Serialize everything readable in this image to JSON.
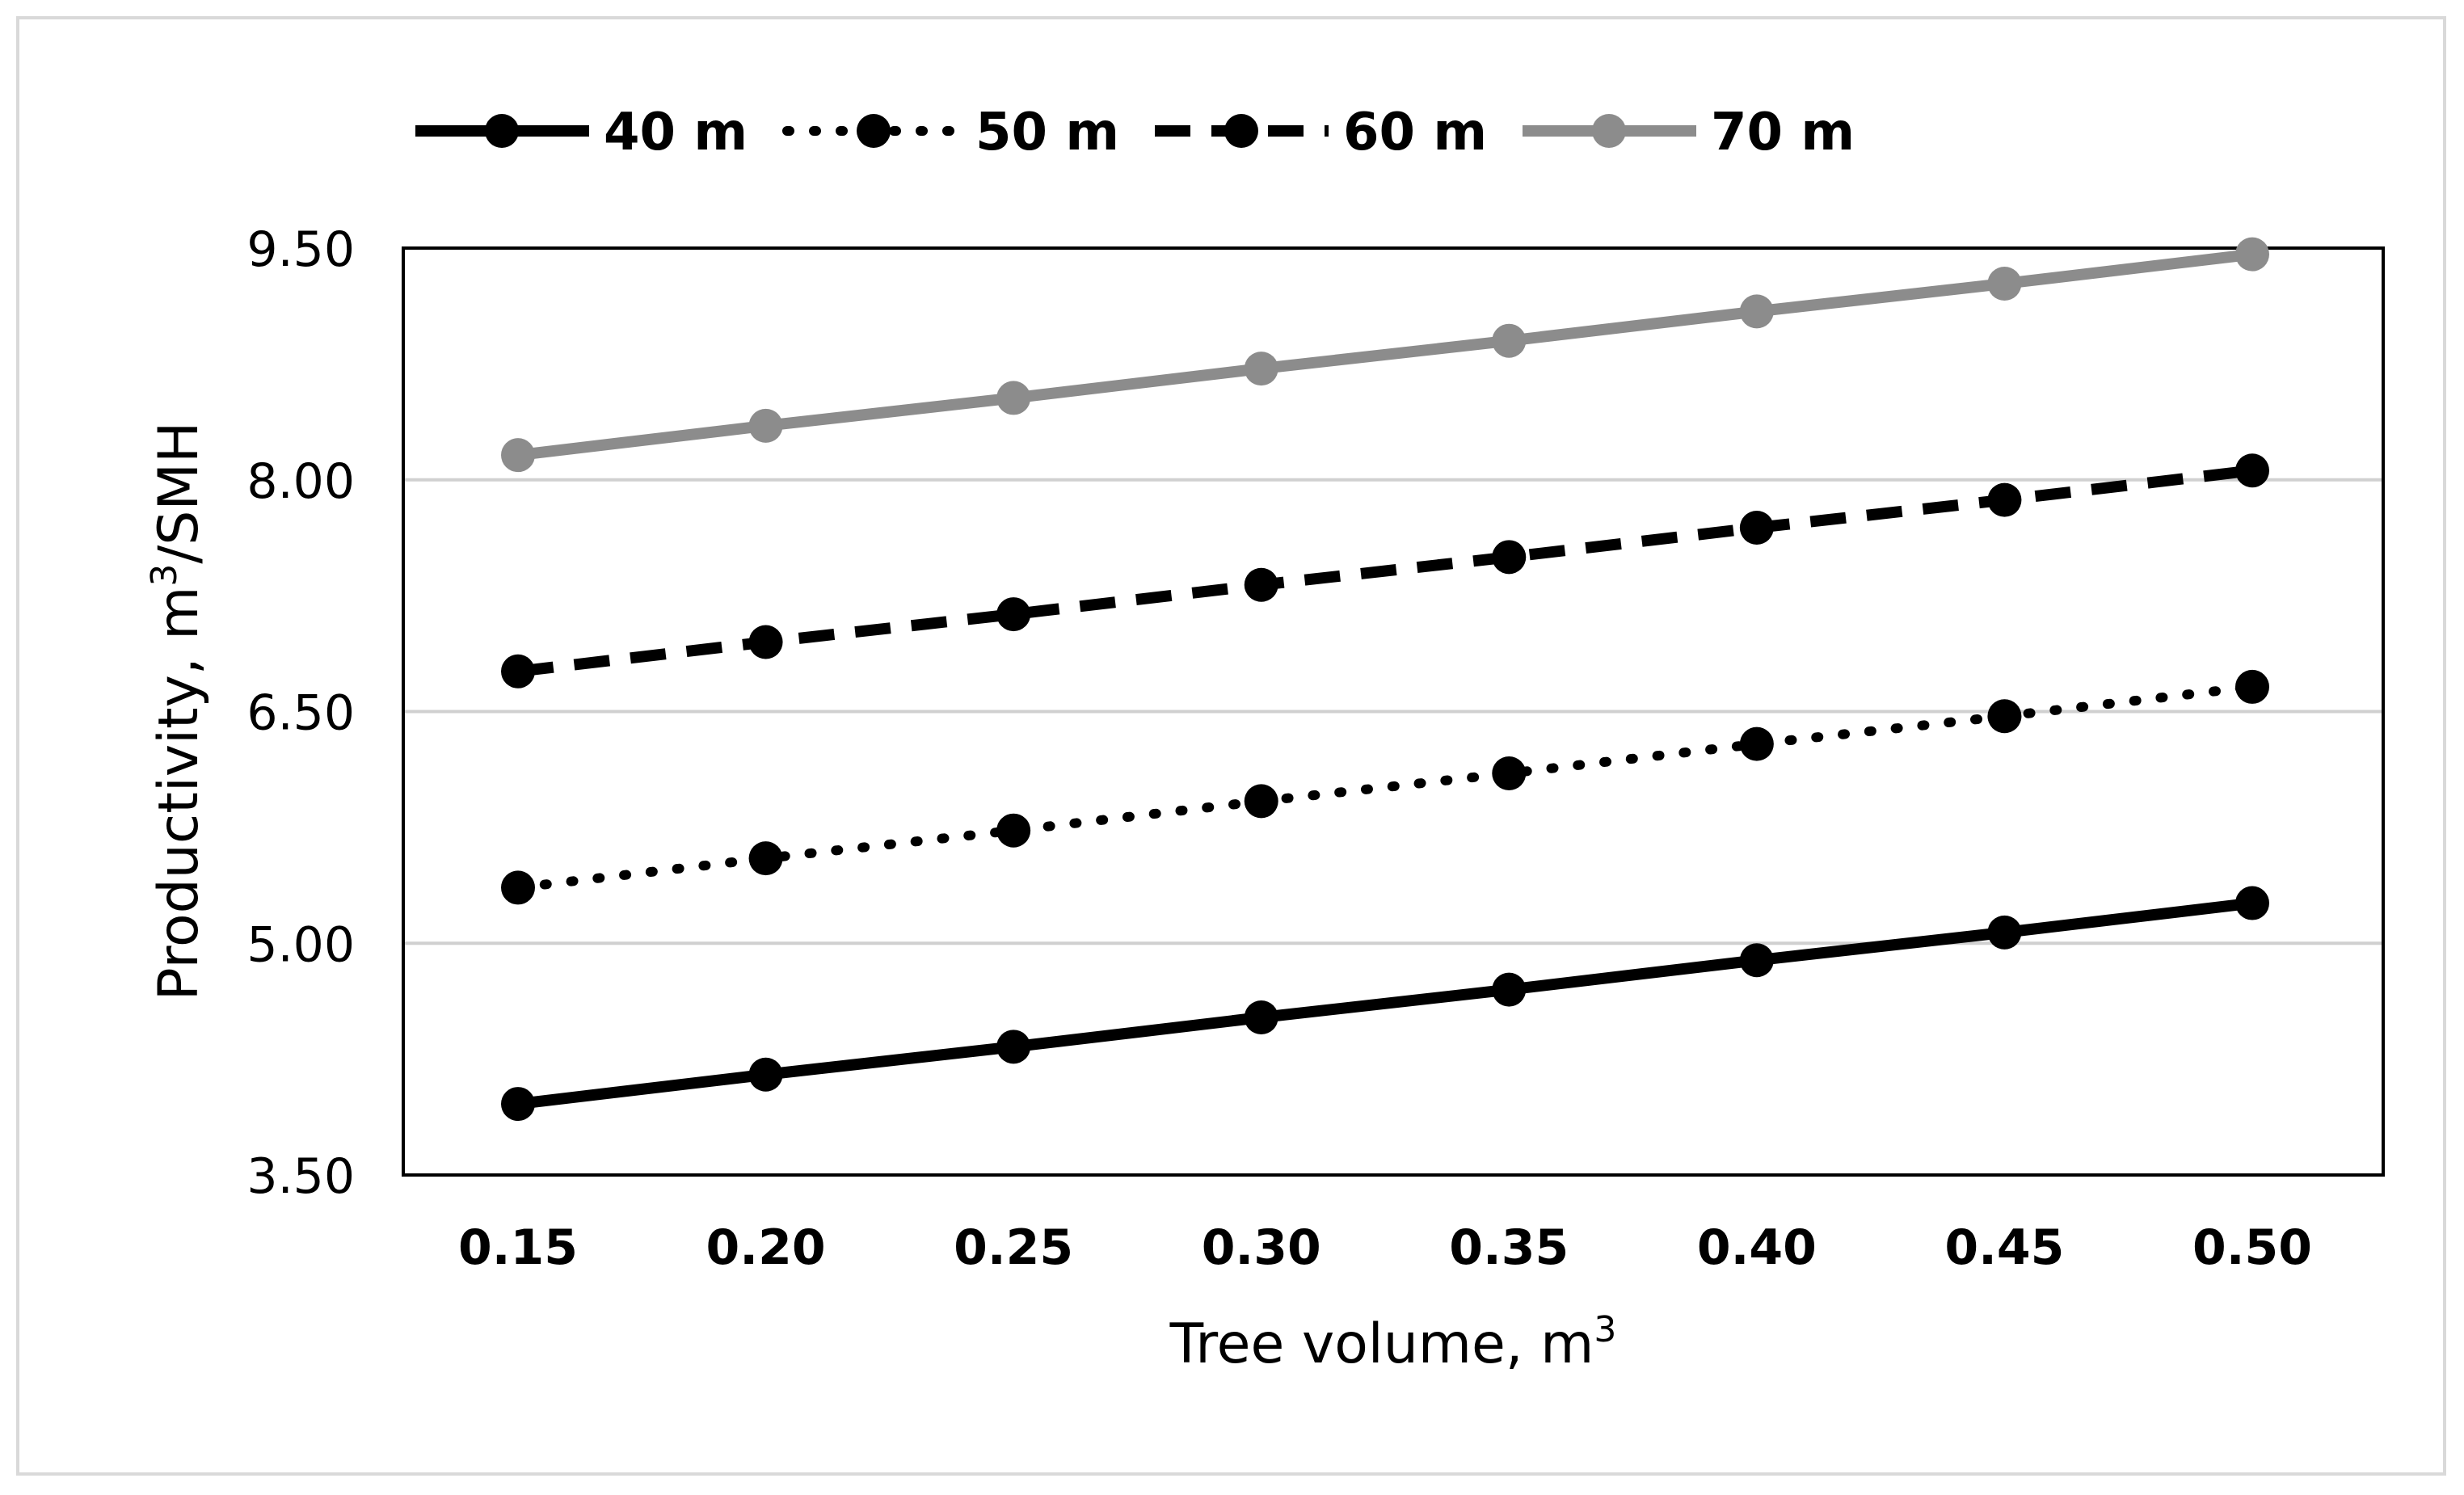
{
  "chart_data": {
    "type": "line",
    "title": "",
    "xlabel": "Tree volume, m",
    "xlabel_sup": "3",
    "ylabel": "Productivity, m",
    "ylabel_sup": "3",
    "ylabel_suffix": "/SMH",
    "x": [
      0.15,
      0.2,
      0.25,
      0.3,
      0.35,
      0.4,
      0.45,
      0.5
    ],
    "x_tick_labels": [
      "0.15",
      "0.20",
      "0.25",
      "0.30",
      "0.35",
      "0.40",
      "0.45",
      "0.50"
    ],
    "ylim": [
      3.5,
      9.5
    ],
    "y_ticks": [
      3.5,
      5.0,
      6.5,
      8.0,
      9.5
    ],
    "y_tick_labels": [
      "3.50",
      "5.00",
      "6.50",
      "8.00",
      "9.50"
    ],
    "grid": true,
    "legend_position": "top",
    "series": [
      {
        "name": "40 m",
        "style": "solid",
        "color": "#000000",
        "values": [
          3.96,
          4.15,
          4.33,
          4.52,
          4.7,
          4.89,
          5.07,
          5.26
        ]
      },
      {
        "name": "50 m",
        "style": "dotted",
        "color": "#000000",
        "values": [
          5.36,
          5.55,
          5.73,
          5.92,
          6.1,
          6.29,
          6.47,
          6.66
        ]
      },
      {
        "name": "60 m",
        "style": "dashed",
        "color": "#000000",
        "values": [
          6.76,
          6.95,
          7.13,
          7.32,
          7.5,
          7.69,
          7.87,
          8.06
        ]
      },
      {
        "name": "70 m",
        "style": "solid",
        "color": "#8c8c8c",
        "values": [
          8.16,
          8.35,
          8.53,
          8.72,
          8.9,
          9.09,
          9.27,
          9.46
        ]
      }
    ]
  }
}
